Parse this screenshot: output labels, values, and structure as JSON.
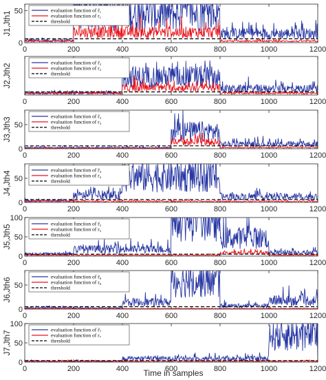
{
  "colors": {
    "evaluation_rtilde": "#2737a3",
    "evaluation_r": "#e8141c",
    "threshold": "#000000",
    "axes": "#262626"
  },
  "xlabel": "Time in samples",
  "chart_data": [
    {
      "type": "line",
      "ylabel": "J1,Jth1",
      "xlim": [
        0,
        1200
      ],
      "ylim": [
        0,
        60
      ],
      "yticks": [
        "0",
        "50"
      ],
      "xticks": [
        "0",
        "200",
        "400",
        "600",
        "800",
        "1000",
        "1200"
      ],
      "grid": false,
      "legend_position": "top-left",
      "series": [
        {
          "name": "evaluation function of r̃₁",
          "segments": [
            [
              0,
              200,
              3
            ],
            [
              200,
              800,
              38
            ],
            [
              800,
              1200,
              12
            ]
          ]
        },
        {
          "name": "evaluation function of r₁",
          "segments": [
            [
              0,
              200,
              2
            ],
            [
              200,
              800,
              14
            ],
            [
              800,
              1200,
              2
            ]
          ]
        },
        {
          "name": "threshold",
          "value": 6
        }
      ]
    },
    {
      "type": "line",
      "ylabel": "J2,Jth2",
      "xlim": [
        0,
        1200
      ],
      "ylim": [
        0,
        50
      ],
      "yticks": [],
      "xticks": [
        "0",
        "200",
        "400",
        "600",
        "800",
        "1000",
        "1200"
      ],
      "grid": false,
      "legend_position": "top-left",
      "series": [
        {
          "name": "evaluation function of r̃₂",
          "segments": [
            [
              0,
              400,
              2
            ],
            [
              400,
              800,
              20
            ],
            [
              800,
              1200,
              7
            ]
          ]
        },
        {
          "name": "evaluation function of r₂",
          "segments": [
            [
              0,
              400,
              2
            ],
            [
              400,
              800,
              8
            ],
            [
              800,
              1200,
              2
            ]
          ]
        },
        {
          "name": "threshold",
          "value": 4
        }
      ]
    },
    {
      "type": "line",
      "ylabel": "J3,Jth3",
      "xlim": [
        0,
        1200
      ],
      "ylim": [
        0,
        80
      ],
      "yticks": [
        "0",
        "50"
      ],
      "xticks": [
        "0",
        "200",
        "400",
        "600",
        "800",
        "1000",
        "1200"
      ],
      "grid": false,
      "legend_position": "top-left",
      "series": [
        {
          "name": "evaluation function of r̃₃",
          "segments": [
            [
              0,
              600,
              2
            ],
            [
              600,
              800,
              30
            ],
            [
              800,
              1200,
              8
            ]
          ]
        },
        {
          "name": "evaluation function of r₃",
          "segments": [
            [
              0,
              600,
              1
            ],
            [
              600,
              800,
              12
            ],
            [
              800,
              1200,
              2
            ]
          ]
        },
        {
          "name": "threshold",
          "value": 6
        }
      ]
    },
    {
      "type": "line",
      "ylabel": "J4,Jth4",
      "xlim": [
        0,
        1200
      ],
      "ylim": [
        0,
        80
      ],
      "yticks": [
        "0",
        "50"
      ],
      "xticks": [
        "0",
        "200",
        "400",
        "600",
        "800",
        "1000",
        "1200"
      ],
      "grid": false,
      "legend_position": "top-left",
      "series": [
        {
          "name": "evaluation function of r̃₄",
          "segments": [
            [
              0,
              200,
              3
            ],
            [
              200,
              400,
              12
            ],
            [
              400,
              800,
              45
            ],
            [
              800,
              1200,
              10
            ]
          ]
        },
        {
          "name": "evaluation function of r₄",
          "segments": [
            [
              0,
              1200,
              2
            ]
          ]
        },
        {
          "name": "threshold",
          "value": 6
        }
      ]
    },
    {
      "type": "line",
      "ylabel": "J5,Jth5",
      "xlim": [
        0,
        1200
      ],
      "ylim": [
        0,
        100
      ],
      "yticks": [
        "0",
        "50",
        "100"
      ],
      "xticks": [
        "0",
        "200",
        "400",
        "600",
        "800",
        "1000",
        "1200"
      ],
      "grid": false,
      "legend_position": "top-left",
      "series": [
        {
          "name": "evaluation function of r̃₅",
          "segments": [
            [
              0,
              200,
              5
            ],
            [
              200,
              600,
              15
            ],
            [
              600,
              800,
              80
            ],
            [
              800,
              1000,
              40
            ],
            [
              1000,
              1200,
              8
            ]
          ]
        },
        {
          "name": "evaluation function of r₅",
          "segments": [
            [
              0,
              800,
              2
            ],
            [
              800,
              1000,
              7
            ],
            [
              1000,
              1200,
              2
            ]
          ]
        },
        {
          "name": "threshold",
          "value": 5
        }
      ]
    },
    {
      "type": "line",
      "ylabel": "J6,Jth6",
      "xlim": [
        0,
        1200
      ],
      "ylim": [
        0,
        80
      ],
      "yticks": [
        "0",
        "50"
      ],
      "xticks": [
        "0",
        "200",
        "400",
        "600",
        "800",
        "1000",
        "1200"
      ],
      "grid": false,
      "legend_position": "top-left",
      "series": [
        {
          "name": "evaluation function of r̃₆",
          "segments": [
            [
              0,
              400,
              2
            ],
            [
              400,
              600,
              12
            ],
            [
              600,
              800,
              50
            ],
            [
              800,
              1000,
              6
            ],
            [
              1000,
              1200,
              15
            ]
          ]
        },
        {
          "name": "evaluation function of r₆",
          "segments": [
            [
              0,
              1200,
              1
            ]
          ]
        },
        {
          "name": "threshold",
          "value": 5
        }
      ]
    },
    {
      "type": "line",
      "ylabel": "J7,Jth7",
      "xlim": [
        0,
        1200
      ],
      "ylim": [
        0,
        100
      ],
      "yticks": [
        "0",
        "50",
        "100"
      ],
      "xticks": [
        "0",
        "200",
        "400",
        "600",
        "800",
        "1000",
        "1200"
      ],
      "grid": false,
      "legend_position": "top-left",
      "series": [
        {
          "name": "evaluation function of r̃₇",
          "segments": [
            [
              0,
              400,
              2
            ],
            [
              400,
              1000,
              8
            ],
            [
              1000,
              1200,
              60
            ]
          ]
        },
        {
          "name": "evaluation function of r₇",
          "segments": [
            [
              0,
              1200,
              2
            ]
          ]
        },
        {
          "name": "threshold",
          "value": 4
        }
      ]
    }
  ]
}
